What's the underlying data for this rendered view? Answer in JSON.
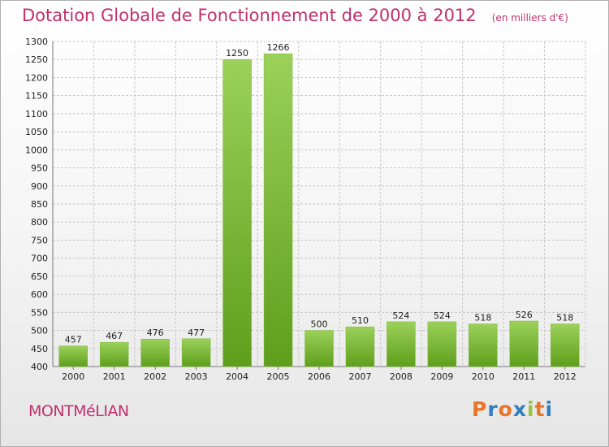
{
  "header": {
    "title": "Dotation Globale de Fonctionnement de 2000 à 2012",
    "unit": "(en milliers d'€)"
  },
  "footer": {
    "commune": "MONTMéLIAN",
    "logo": {
      "letters": [
        "P",
        "r",
        "o",
        "x",
        "i",
        "t",
        "i"
      ],
      "colors": [
        "#e8752a",
        "#2f7fbf",
        "#e8752a",
        "#2f7fbf",
        "#9ac33a",
        "#e8752a",
        "#2f7fbf"
      ]
    }
  },
  "chart_data": {
    "type": "bar",
    "title": "Dotation Globale de Fonctionnement de 2000 à 2012",
    "subtitle": "(en milliers d'€)",
    "xlabel": "",
    "ylabel": "",
    "categories": [
      "2000",
      "2001",
      "2002",
      "2003",
      "2004",
      "2005",
      "2006",
      "2007",
      "2008",
      "2009",
      "2010",
      "2011",
      "2012"
    ],
    "values": [
      457,
      467,
      476,
      477,
      1250,
      1266,
      500,
      510,
      524,
      524,
      518,
      526,
      518
    ],
    "value_labels": [
      "457",
      "467",
      "476",
      "477",
      "1250",
      "1266",
      "500",
      "510",
      "524",
      "524",
      "518",
      "526",
      "518"
    ],
    "ylim": [
      400,
      1300
    ],
    "yticks": [
      400,
      450,
      500,
      550,
      600,
      650,
      700,
      750,
      800,
      850,
      900,
      950,
      1000,
      1050,
      1100,
      1150,
      1200,
      1250,
      1300
    ],
    "ytick_labels": [
      "400",
      "450",
      "500",
      "550",
      "600",
      "650",
      "700",
      "750",
      "800",
      "850",
      "900",
      "950",
      "1000",
      "1050",
      "1100",
      "1150",
      "1200",
      "1250",
      "1300"
    ],
    "grid": true,
    "legend": "none",
    "colors": {
      "bar_top": "#9bd15a",
      "bar_bottom": "#5f9e1c",
      "grid": "#c8c8c8",
      "text_accent": "#c0306e"
    }
  }
}
